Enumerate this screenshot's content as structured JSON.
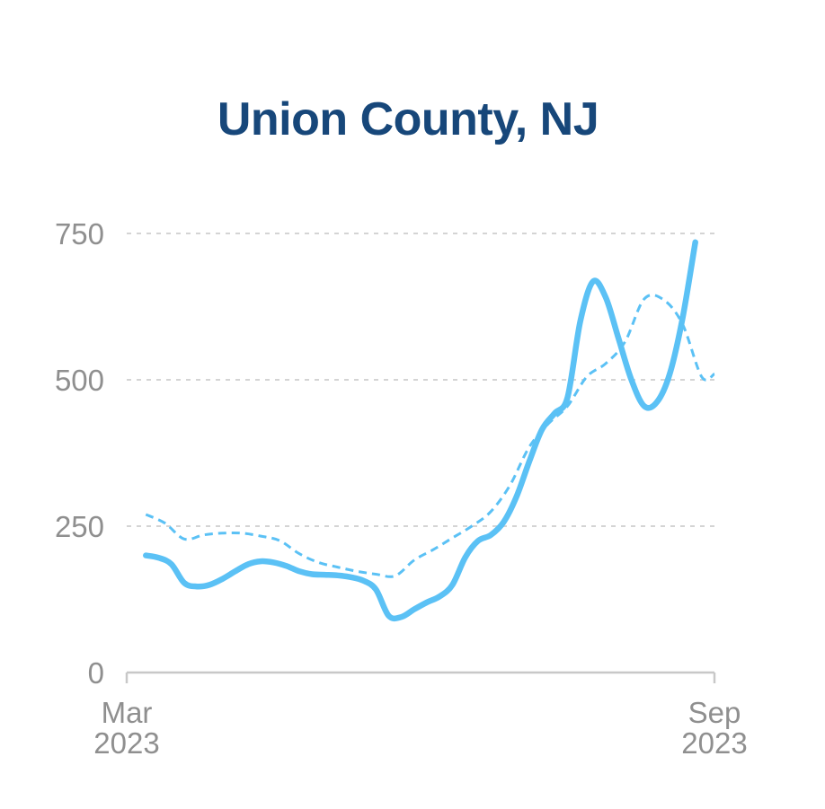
{
  "chart_data": {
    "type": "line",
    "title": "Union County, NJ",
    "xlabel": "",
    "ylabel": "",
    "ylim": [
      0,
      750
    ],
    "y_ticks": [
      "0",
      "250",
      "500",
      "750"
    ],
    "x_ticks": [
      {
        "month": "Mar",
        "year": "2023"
      },
      {
        "month": "Sep",
        "year": "2023"
      }
    ],
    "x_axis": {
      "start": "2023-03-01",
      "end": "2023-09-01"
    },
    "grid": true,
    "legend": "none",
    "series": [
      {
        "style": "solid",
        "color": "#5bc1f5",
        "points": [
          [
            "2023-03-07",
            200
          ],
          [
            "2023-03-11",
            196
          ],
          [
            "2023-03-15",
            185
          ],
          [
            "2023-03-19",
            153
          ],
          [
            "2023-03-23",
            147
          ],
          [
            "2023-03-27",
            150
          ],
          [
            "2023-03-31",
            160
          ],
          [
            "2023-04-04",
            173
          ],
          [
            "2023-04-08",
            185
          ],
          [
            "2023-04-12",
            190
          ],
          [
            "2023-04-16",
            188
          ],
          [
            "2023-04-20",
            182
          ],
          [
            "2023-04-24",
            173
          ],
          [
            "2023-04-28",
            168
          ],
          [
            "2023-05-02",
            167
          ],
          [
            "2023-05-06",
            166
          ],
          [
            "2023-05-10",
            163
          ],
          [
            "2023-05-14",
            157
          ],
          [
            "2023-05-18",
            142
          ],
          [
            "2023-05-22",
            97
          ],
          [
            "2023-05-26",
            95
          ],
          [
            "2023-05-30",
            108
          ],
          [
            "2023-06-03",
            120
          ],
          [
            "2023-06-07",
            130
          ],
          [
            "2023-06-11",
            150
          ],
          [
            "2023-06-15",
            197
          ],
          [
            "2023-06-19",
            225
          ],
          [
            "2023-06-23",
            235
          ],
          [
            "2023-06-27",
            257
          ],
          [
            "2023-07-01",
            300
          ],
          [
            "2023-07-05",
            360
          ],
          [
            "2023-07-09",
            415
          ],
          [
            "2023-07-13",
            443
          ],
          [
            "2023-07-17",
            470
          ],
          [
            "2023-07-21",
            600
          ],
          [
            "2023-07-25",
            668
          ],
          [
            "2023-07-29",
            640
          ],
          [
            "2023-08-02",
            570
          ],
          [
            "2023-08-06",
            500
          ],
          [
            "2023-08-10",
            455
          ],
          [
            "2023-08-14",
            462
          ],
          [
            "2023-08-18",
            510
          ],
          [
            "2023-08-22",
            605
          ],
          [
            "2023-08-26",
            735
          ]
        ]
      },
      {
        "style": "dashed",
        "color": "#5bc1f5",
        "points": [
          [
            "2023-03-07",
            270
          ],
          [
            "2023-03-13",
            255
          ],
          [
            "2023-03-19",
            228
          ],
          [
            "2023-03-25",
            235
          ],
          [
            "2023-03-31",
            238
          ],
          [
            "2023-04-06",
            238
          ],
          [
            "2023-04-12",
            233
          ],
          [
            "2023-04-18",
            225
          ],
          [
            "2023-04-24",
            203
          ],
          [
            "2023-04-30",
            188
          ],
          [
            "2023-05-06",
            180
          ],
          [
            "2023-05-12",
            173
          ],
          [
            "2023-05-18",
            168
          ],
          [
            "2023-05-24",
            165
          ],
          [
            "2023-05-30",
            192
          ],
          [
            "2023-06-05",
            210
          ],
          [
            "2023-06-11",
            230
          ],
          [
            "2023-06-17",
            250
          ],
          [
            "2023-06-23",
            275
          ],
          [
            "2023-06-29",
            320
          ],
          [
            "2023-07-05",
            385
          ],
          [
            "2023-07-11",
            425
          ],
          [
            "2023-07-17",
            455
          ],
          [
            "2023-07-23",
            505
          ],
          [
            "2023-07-29",
            528
          ],
          [
            "2023-08-04",
            565
          ],
          [
            "2023-08-10",
            638
          ],
          [
            "2023-08-16",
            637
          ],
          [
            "2023-08-22",
            595
          ],
          [
            "2023-08-28",
            505
          ],
          [
            "2023-09-01",
            510
          ]
        ]
      }
    ],
    "colors": {
      "title": "#17477a",
      "line": "#5bc1f5",
      "grid": "#d4d4d4",
      "axis": "#c8c8c8",
      "tick_text": "#8f8f8f"
    }
  }
}
